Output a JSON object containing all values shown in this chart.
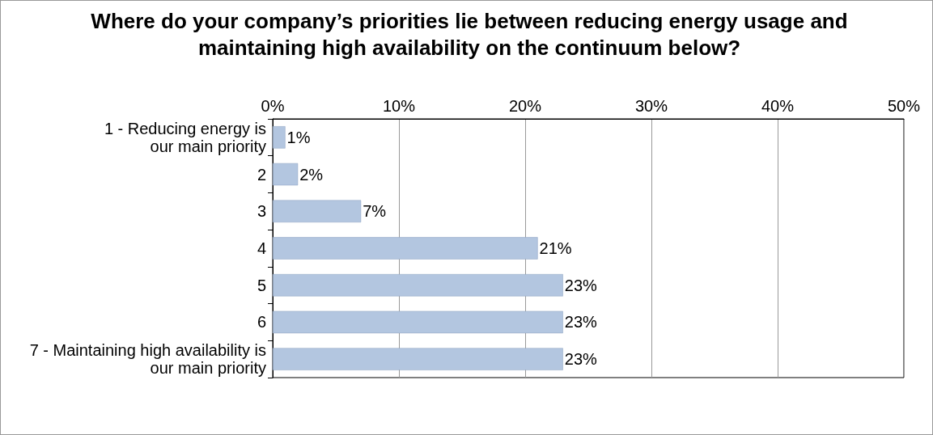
{
  "chart_data": {
    "type": "bar",
    "orientation": "horizontal",
    "title": "Where do your company’s priorities lie between reducing energy usage and maintaining high availability on the continuum below?",
    "categories": [
      "1 - Reducing energy is our main priority",
      "2",
      "3",
      "4",
      "5",
      "6",
      "7 - Maintaining high availability is our main priority"
    ],
    "values": [
      1,
      2,
      7,
      21,
      23,
      23,
      23
    ],
    "value_labels": [
      "1%",
      "2%",
      "7%",
      "21%",
      "23%",
      "23%",
      "23%"
    ],
    "color": "#b3c6e0",
    "xlim": [
      0,
      50
    ],
    "xticks": [
      {
        "value": 0,
        "label": "0%"
      },
      {
        "value": 10,
        "label": "10%"
      },
      {
        "value": 20,
        "label": "20%"
      },
      {
        "value": 30,
        "label": "30%"
      },
      {
        "value": 40,
        "label": "40%"
      },
      {
        "value": 50,
        "label": "50%"
      }
    ],
    "grid": "x"
  }
}
